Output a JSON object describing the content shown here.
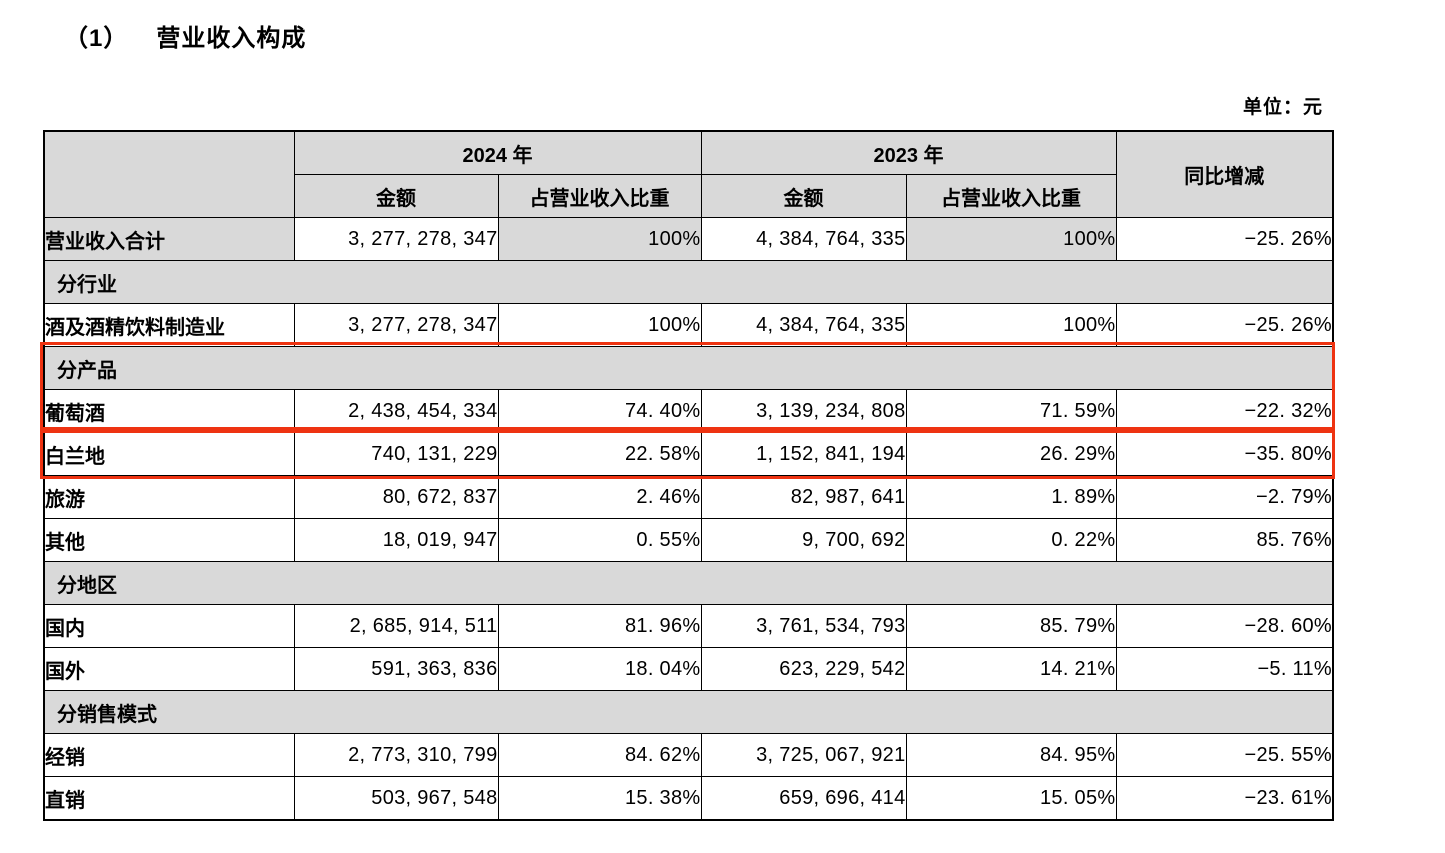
{
  "page": {
    "heading_prefix": "（1）",
    "heading": "营业收入构成",
    "unit_label": "单位：元"
  },
  "colors": {
    "section_row_bg": "#d9d9d9",
    "header_bg": "#d9d9d9",
    "highlight_border_red": "#ee3311",
    "table_border": "#000000"
  },
  "table": {
    "columns": {
      "group_2024": "2024 年",
      "group_2023": "2023 年",
      "amount": "金额",
      "share": "占营业收入比重",
      "yoy": "同比增减"
    },
    "rows": [
      {
        "type": "total",
        "label": "营业收入合计",
        "amount_2024": "3, 277, 278, 347",
        "share_2024": "100%",
        "amount_2023": "4, 384, 764, 335",
        "share_2023": "100%",
        "yoy": "−25. 26%"
      },
      {
        "type": "section",
        "label": "分行业"
      },
      {
        "type": "data",
        "label": "酒及酒精饮料制造业",
        "amount_2024": "3, 277, 278, 347",
        "share_2024": "100%",
        "amount_2023": "4, 384, 764, 335",
        "share_2023": "100%",
        "yoy": "−25. 26%"
      },
      {
        "type": "section",
        "label": "分产品",
        "highlighted": true
      },
      {
        "type": "data",
        "label": "葡萄酒",
        "amount_2024": "2, 438, 454, 334",
        "share_2024": "74. 40%",
        "amount_2023": "3, 139, 234, 808",
        "share_2023": "71. 59%",
        "yoy": "−22. 32%",
        "highlighted": true
      },
      {
        "type": "data",
        "label": "白兰地",
        "amount_2024": "740, 131, 229",
        "share_2024": "22. 58%",
        "amount_2023": "1, 152, 841, 194",
        "share_2023": "26. 29%",
        "yoy": "−35. 80%",
        "highlighted": true
      },
      {
        "type": "data",
        "label": "旅游",
        "amount_2024": "80, 672, 837",
        "share_2024": "2. 46%",
        "amount_2023": "82, 987, 641",
        "share_2023": "1. 89%",
        "yoy": "−2. 79%"
      },
      {
        "type": "data",
        "label": "其他",
        "amount_2024": "18, 019, 947",
        "share_2024": "0. 55%",
        "amount_2023": "9, 700, 692",
        "share_2023": "0. 22%",
        "yoy": "85. 76%"
      },
      {
        "type": "section",
        "label": "分地区"
      },
      {
        "type": "data",
        "label": "国内",
        "amount_2024": "2, 685, 914, 511",
        "share_2024": "81. 96%",
        "amount_2023": "3, 761, 534, 793",
        "share_2023": "85. 79%",
        "yoy": "−28. 60%"
      },
      {
        "type": "data",
        "label": "国外",
        "amount_2024": "591, 363, 836",
        "share_2024": "18. 04%",
        "amount_2023": "623, 229, 542",
        "share_2023": "14. 21%",
        "yoy": "−5. 11%"
      },
      {
        "type": "section",
        "label": "分销售模式"
      },
      {
        "type": "data",
        "label": "经销",
        "amount_2024": "2, 773, 310, 799",
        "share_2024": "84. 62%",
        "amount_2023": "3, 725, 067, 921",
        "share_2023": "84. 95%",
        "yoy": "−25. 55%"
      },
      {
        "type": "data",
        "label": "直销",
        "amount_2024": "503, 967, 548",
        "share_2024": "15. 38%",
        "amount_2023": "659, 696, 414",
        "share_2023": "15. 05%",
        "yoy": "−23. 61%"
      }
    ],
    "highlight_annotation": {
      "shape": "red-rectangles",
      "covers_rows": [
        "分产品",
        "葡萄酒",
        "白兰地"
      ]
    }
  }
}
